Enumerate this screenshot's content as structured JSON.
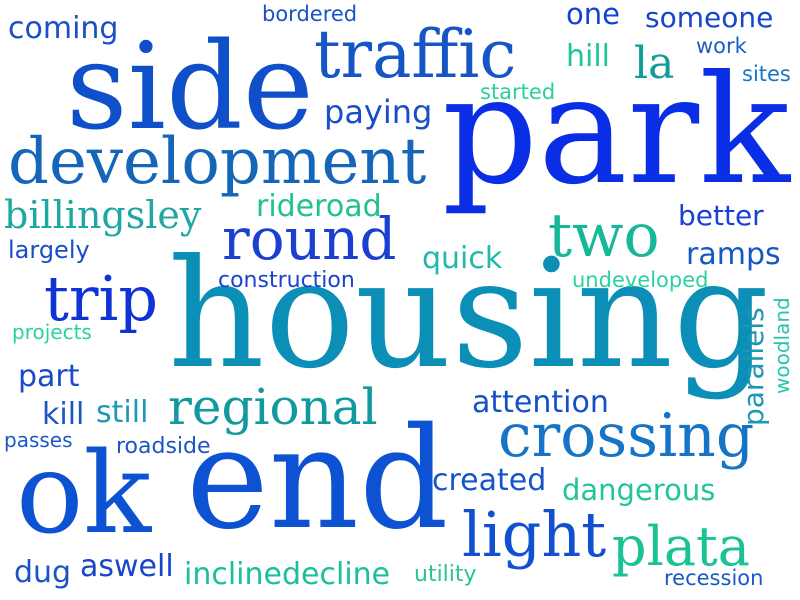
{
  "words": {
    "side": {
      "text": "side",
      "color": "#0f4fc9"
    },
    "park": {
      "text": "park",
      "color": "#0a2ee6"
    },
    "traffic": {
      "text": "traffic",
      "color": "#1555c6"
    },
    "development": {
      "text": "development",
      "color": "#1566b8"
    },
    "housing": {
      "text": "housing",
      "color": "#0b8fb6"
    },
    "round": {
      "text": "round",
      "color": "#1a3fd1"
    },
    "trip": {
      "text": "trip",
      "color": "#1033d6"
    },
    "two": {
      "text": "two",
      "color": "#17b79a"
    },
    "ok": {
      "text": "ok",
      "color": "#0c52d3"
    },
    "end": {
      "text": "end",
      "color": "#0c52d3"
    },
    "crossing": {
      "text": "crossing",
      "color": "#1574c5"
    },
    "regional": {
      "text": "regional",
      "color": "#119a9e"
    },
    "light": {
      "text": "light",
      "color": "#1250d2"
    },
    "plata": {
      "text": "plata",
      "color": "#1ac294"
    },
    "billingsley": {
      "text": "billingsley",
      "color": "#1fa7a2"
    },
    "coming": {
      "text": "coming",
      "color": "#1a4fc6"
    },
    "bordered": {
      "text": "bordered",
      "color": "#1a54c4"
    },
    "one": {
      "text": "one",
      "color": "#1246c8"
    },
    "someone": {
      "text": "someone",
      "color": "#1646cc"
    },
    "work": {
      "text": "work",
      "color": "#1c5fc2"
    },
    "hill": {
      "text": "hill",
      "color": "#1ac69a"
    },
    "la": {
      "text": "la",
      "color": "#119d96"
    },
    "sites": {
      "text": "sites",
      "color": "#1a76be"
    },
    "paying": {
      "text": "paying",
      "color": "#1a4ec8"
    },
    "started": {
      "text": "started",
      "color": "#28d09a"
    },
    "rideroad": {
      "text": "rideroad",
      "color": "#22c28e"
    },
    "better": {
      "text": "better",
      "color": "#1c3fd4"
    },
    "largely": {
      "text": "largely",
      "color": "#1a4fc4"
    },
    "quick": {
      "text": "quick",
      "color": "#20b9ab"
    },
    "ramps": {
      "text": "ramps",
      "color": "#1358c4"
    },
    "construction": {
      "text": "construction",
      "color": "#1a44ca"
    },
    "undeveloped": {
      "text": "undeveloped",
      "color": "#2bd1a0"
    },
    "projects": {
      "text": "projects",
      "color": "#2bd1a0"
    },
    "part": {
      "text": "part",
      "color": "#1a4ac9"
    },
    "kill": {
      "text": "kill",
      "color": "#1c56c6"
    },
    "still": {
      "text": "still",
      "color": "#1a9bb3"
    },
    "passes": {
      "text": "passes",
      "color": "#1a58c5"
    },
    "roadside": {
      "text": "roadside",
      "color": "#1a56c5"
    },
    "attention": {
      "text": "attention",
      "color": "#1450c8"
    },
    "parallels": {
      "text": "parallels",
      "color": "#1b96b3"
    },
    "woodland": {
      "text": "woodland",
      "color": "#2cc4a8"
    },
    "created": {
      "text": "created",
      "color": "#1655c9"
    },
    "dangerous": {
      "text": "dangerous",
      "color": "#22c599"
    },
    "dug": {
      "text": "dug",
      "color": "#1a54c4"
    },
    "aswell": {
      "text": "aswell",
      "color": "#1647c8"
    },
    "inclinedecline": {
      "text": "inclinedecline",
      "color": "#1cbf9c"
    },
    "utility": {
      "text": "utility",
      "color": "#28c396"
    },
    "recession": {
      "text": "recession",
      "color": "#1a59c4"
    }
  }
}
